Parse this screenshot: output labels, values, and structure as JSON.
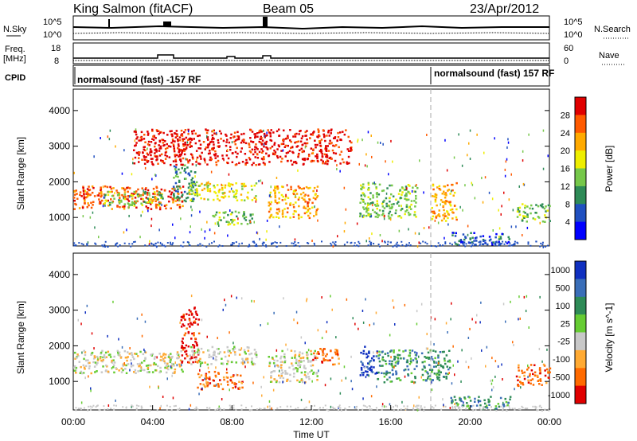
{
  "header": {
    "station": "King Salmon (fitACF)",
    "beam": "Beam 05",
    "date": "23/Apr/2012"
  },
  "noise_panel": {
    "left_label": "N.Sky",
    "right_label": "N.Search",
    "left_ticks": [
      "10^5",
      "10^0"
    ],
    "right_ticks": [
      "10^5",
      "10^0"
    ]
  },
  "freq_panel": {
    "left_label_1": "Freq.",
    "left_label_2": "[MHz]",
    "right_label": "Nave",
    "left_ticks": [
      "18",
      "8"
    ],
    "right_ticks": [
      "60",
      "0"
    ]
  },
  "cpid_panel": {
    "label": "CPID",
    "program_1": "normalsound (fast) -157 RF",
    "program_2": "normalsound (fast) 157 RF"
  },
  "chart_data": [
    {
      "type": "heatmap",
      "name": "power",
      "ylabel": "Slant Range [km]",
      "yticks": [
        1000,
        2000,
        3000,
        4000
      ],
      "ylim": [
        200,
        4600
      ],
      "xlim": [
        0,
        24
      ],
      "colorbar": {
        "label": "Power [dB]",
        "ticks": [
          "28",
          "24",
          "20",
          "16",
          "12",
          "8",
          "4"
        ],
        "colors": [
          "#e00000",
          "#ff5a00",
          "#ffaa00",
          "#eeee00",
          "#76c84a",
          "#2e8b57",
          "#2050c0",
          "#0000ff"
        ]
      },
      "regions": [
        {
          "t": [
            0.0,
            5.5
          ],
          "r": [
            1250,
            1900
          ],
          "level": 1
        },
        {
          "t": [
            1.5,
            4.5
          ],
          "r": [
            1350,
            1750
          ],
          "level": 4
        },
        {
          "t": [
            5.0,
            6.2
          ],
          "r": [
            1450,
            2500
          ],
          "level": 5
        },
        {
          "t": [
            5.8,
            9.2
          ],
          "r": [
            1500,
            2000
          ],
          "level": 3
        },
        {
          "t": [
            7.0,
            9.0
          ],
          "r": [
            800,
            1200
          ],
          "level": 4
        },
        {
          "t": [
            9.8,
            12.3
          ],
          "r": [
            1000,
            1900
          ],
          "level": 2
        },
        {
          "t": [
            14.4,
            17.3
          ],
          "r": [
            1000,
            2000
          ],
          "level": 4
        },
        {
          "t": [
            18.0,
            19.3
          ],
          "r": [
            900,
            2000
          ],
          "level": 2
        },
        {
          "t": [
            19.0,
            22.0
          ],
          "r": [
            250,
            600
          ],
          "level": 6
        },
        {
          "t": [
            22.3,
            24.0
          ],
          "r": [
            900,
            1400
          ],
          "level": 4
        },
        {
          "t": [
            3.0,
            14.0
          ],
          "r": [
            2500,
            3500
          ],
          "level": 0
        }
      ]
    },
    {
      "type": "heatmap",
      "name": "velocity",
      "ylabel": "Slant Range [km]",
      "yticks": [
        1000,
        2000,
        3000,
        4000
      ],
      "ylim": [
        200,
        4600
      ],
      "xlim": [
        0,
        24
      ],
      "xticks": [
        "00:00",
        "04:00",
        "08:00",
        "12:00",
        "16:00",
        "20:00",
        "00:00"
      ],
      "xlabel": "Time UT",
      "colorbar": {
        "label": "Velocity [m s^-1]",
        "ticks": [
          "1000",
          "500",
          "100",
          "25",
          "-25",
          "-100",
          "-500",
          "-1000"
        ],
        "colors": [
          "#1030c0",
          "#3a6eb8",
          "#2e8b57",
          "#66cc33",
          "#c8c8c8",
          "#ffaa33",
          "#ff6a00",
          "#e00000"
        ]
      },
      "regions": [
        {
          "t": [
            0.0,
            5.5
          ],
          "r": [
            1250,
            1900
          ],
          "level": 4
        },
        {
          "t": [
            5.4,
            6.3
          ],
          "r": [
            1500,
            3100
          ],
          "level": 7
        },
        {
          "t": [
            5.8,
            9.2
          ],
          "r": [
            1500,
            2000
          ],
          "level": 4
        },
        {
          "t": [
            6.2,
            8.5
          ],
          "r": [
            800,
            1300
          ],
          "level": 6
        },
        {
          "t": [
            9.8,
            12.3
          ],
          "r": [
            1000,
            1900
          ],
          "level": 4
        },
        {
          "t": [
            12.0,
            13.4
          ],
          "r": [
            1500,
            1950
          ],
          "level": 6
        },
        {
          "t": [
            14.4,
            15.3
          ],
          "r": [
            1200,
            2000
          ],
          "level": 0
        },
        {
          "t": [
            15.3,
            17.3
          ],
          "r": [
            1000,
            1900
          ],
          "level": 2
        },
        {
          "t": [
            17.5,
            19.0
          ],
          "r": [
            1000,
            1900
          ],
          "level": 2
        },
        {
          "t": [
            19.0,
            22.0
          ],
          "r": [
            250,
            600
          ],
          "level": 2
        },
        {
          "t": [
            22.3,
            24.0
          ],
          "r": [
            900,
            1500
          ],
          "level": 6
        }
      ]
    }
  ]
}
